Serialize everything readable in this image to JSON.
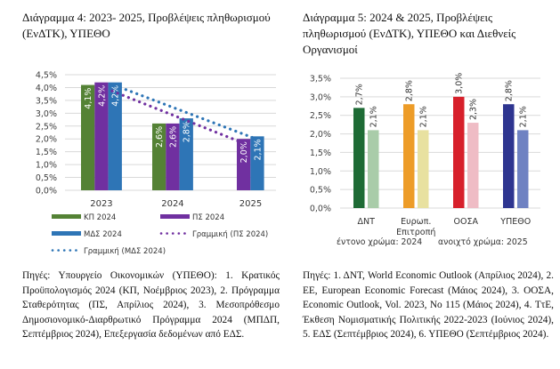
{
  "chart_data": [
    {
      "type": "bar",
      "title": "Διάγραμμα 4: 2023- 2025, Προβλέψεις πληθωρισμού (ΕνΔΤΚ), ΥΠΕΘΟ",
      "categories": [
        "2023",
        "2024",
        "2025"
      ],
      "series": [
        {
          "name": "ΚΠ 2024",
          "color": "#548235",
          "values": [
            4.1,
            2.6,
            null
          ],
          "labels": [
            "4,1%",
            "2,6%",
            null
          ]
        },
        {
          "name": "ΠΣ 2024",
          "color": "#7030a0",
          "values": [
            4.2,
            2.6,
            2.0
          ],
          "labels": [
            "4,2%",
            "2,6%",
            "2,0%"
          ]
        },
        {
          "name": "ΜΔΣ 2024",
          "color": "#2e75b6",
          "values": [
            4.2,
            2.8,
            2.1
          ],
          "labels": [
            "4,2%",
            "2,8%",
            "2,1%"
          ]
        }
      ],
      "trendlines": [
        {
          "name": "Γραμμική (ΠΣ 2024)",
          "color": "#7030a0",
          "style": "dotted",
          "of_series": "ΠΣ 2024"
        },
        {
          "name": "Γραμμική (ΜΔΣ 2024)",
          "color": "#2e75b6",
          "style": "dotted",
          "of_series": "ΜΔΣ 2024"
        }
      ],
      "xlabel": "",
      "ylabel": "",
      "ylim": [
        0,
        4.5
      ],
      "yticks": [
        "0,0%",
        "0,5%",
        "1,0%",
        "1,5%",
        "2,0%",
        "2,5%",
        "3,0%",
        "3,5%",
        "4,0%",
        "4,5%"
      ],
      "grid": true,
      "legend_position": "bottom",
      "data_labels": "inside-rotated"
    },
    {
      "type": "bar",
      "title": "Διάγραμμα 5: 2024 & 2025, Προβλέψεις πληθωρισμού (ΕνΔΤΚ), ΥΠΕΘΟ και Διεθνείς Οργανισμοί",
      "categories": [
        "ΔΝΤ",
        "Ευρωπ. Επιτροπή",
        "ΟΟΣΑ",
        "ΥΠΕΘΟ"
      ],
      "category_lines": [
        [
          "ΔΝΤ"
        ],
        [
          "Ευρωπ.",
          "Επιτροπή"
        ],
        [
          "ΟΟΣΑ"
        ],
        [
          "ΥΠΕΘΟ"
        ]
      ],
      "series": [
        {
          "name": "2024",
          "values": [
            2.7,
            2.8,
            3.0,
            2.8
          ],
          "labels": [
            "2,7%",
            "2,8%",
            "3,0%",
            "2,8%"
          ],
          "colors": [
            "#1e6b35",
            "#ed9c28",
            "#d7202b",
            "#2e3590"
          ]
        },
        {
          "name": "2025",
          "values": [
            2.1,
            2.1,
            2.3,
            2.1
          ],
          "labels": [
            "2,1%",
            "2,1%",
            "2,3%",
            "2,1%"
          ],
          "colors": [
            "#a9cca9",
            "#e8e1a0",
            "#efbcc5",
            "#6f82c2"
          ]
        }
      ],
      "xlabel": "",
      "ylabel": "",
      "ylim": [
        0,
        3.5
      ],
      "yticks": [
        "0,0%",
        "0,5%",
        "1,0%",
        "1,5%",
        "2,0%",
        "2,5%",
        "3,0%",
        "3,5%"
      ],
      "grid": true,
      "legend_note": [
        "έντονο χρώμα:  2024",
        "ανοιχτό χρώμα:  2025"
      ],
      "data_labels": "above-rotated"
    }
  ],
  "headings": {
    "chart4_title": "Διάγραμμα 4: 2023- 2025, Προβλέψεις πληθωρισμού (ΕνΔΤΚ), ΥΠΕΘΟ",
    "chart5_title": "Διάγραμμα 5: 2024 & 2025, Προβλέψεις πληθωρισμού (ΕνΔΤΚ), ΥΠΕΘΟ και Διεθνείς Οργανισμοί"
  },
  "sources": {
    "chart4": "Πηγές: Υπουργείο Οικονομικών (ΥΠΕΘΟ): 1. Κρατικός Προϋπολογισμός 2024 (ΚΠ, Νοέμβριος 2023), 2. Πρόγραμμα Σταθερότητας (ΠΣ, Απρίλιος 2024), 3. Μεσοπρόθεσμο Δημοσιονομικό-Διαρθρωτικό Πρόγραμμα 2024 (ΜΠΔΠ, Σεπτέμβριος 2024), Επεξεργασία δεδομένων από ΕΔΣ.",
    "chart5": "Πηγές: 1. ΔΝΤ, World Economic Outlook (Απρίλιος 2024), 2. ΕΕ, European Economic Forecast (Μάιος 2024), 3. ΟΟΣΑ, Economic Outlook, Vol. 2023, No 115 (Μάιος 2024), 4. ΤτΕ, Έκθεση Νομισματικής Πολιτικής 2022-2023 (Ιούνιος 2024), 5. ΕΔΣ (Σεπτέμβριος 2024), 6. ΥΠΕΘΟ (Σεπτέμβριος 2024)."
  }
}
